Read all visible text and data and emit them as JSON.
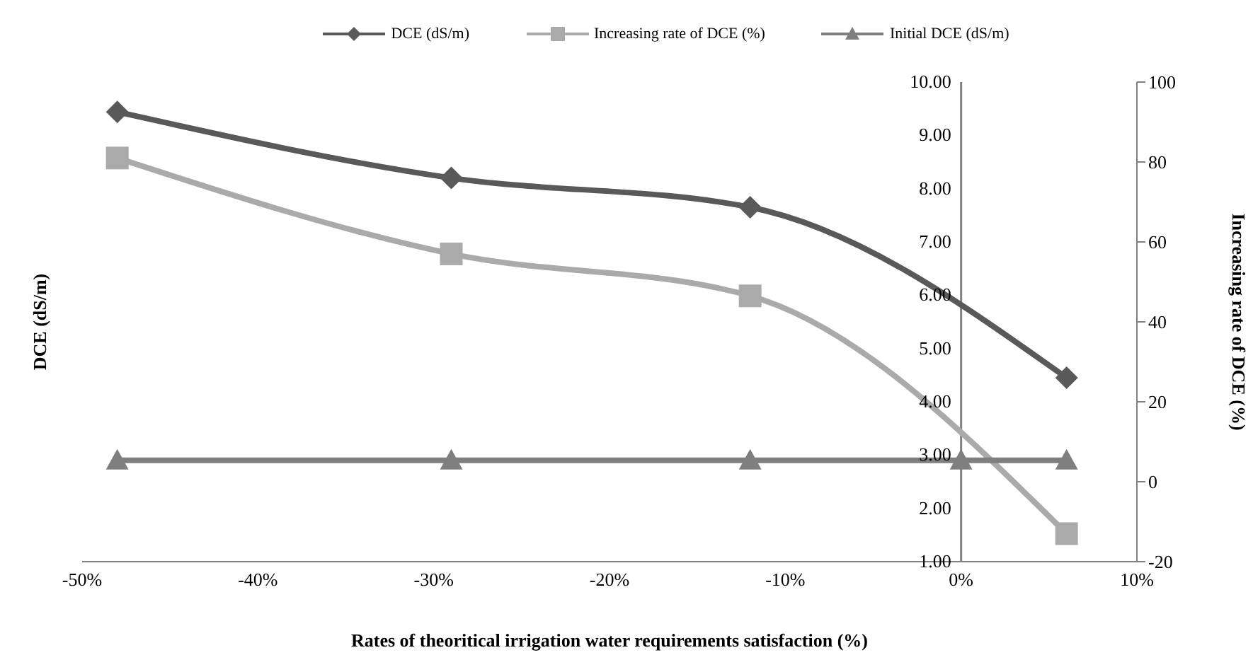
{
  "chart_data": {
    "type": "line",
    "xlabel": "Rates of theoritical irrigation water requirements satisfaction (%)",
    "ylabel": "DCE (dS/m)",
    "y2label": "Increasing rate of DCE (%)",
    "xlim": [
      -50,
      10
    ],
    "xticks": [
      {
        "value": -50,
        "label": "-50%"
      },
      {
        "value": -40,
        "label": "-40%"
      },
      {
        "value": -30,
        "label": "-30%"
      },
      {
        "value": -20,
        "label": "-20%"
      },
      {
        "value": -10,
        "label": "-10%"
      },
      {
        "value": 0,
        "label": "0%"
      },
      {
        "value": 10,
        "label": "10%"
      }
    ],
    "ylim": [
      1,
      10
    ],
    "yticks": [
      {
        "value": 1,
        "label": "1.00"
      },
      {
        "value": 2,
        "label": "2.00"
      },
      {
        "value": 3,
        "label": "3.00"
      },
      {
        "value": 4,
        "label": "4.00"
      },
      {
        "value": 5,
        "label": "5.00"
      },
      {
        "value": 6,
        "label": "6.00"
      },
      {
        "value": 7,
        "label": "7.00"
      },
      {
        "value": 8,
        "label": "8.00"
      },
      {
        "value": 9,
        "label": "9.00"
      },
      {
        "value": 10,
        "label": "10.00"
      }
    ],
    "y2lim": [
      -20,
      100
    ],
    "y2ticks": [
      -20,
      0,
      20,
      40,
      60,
      80,
      100
    ],
    "legend": "top",
    "line_style": "solid",
    "series": [
      {
        "name": "DCE (dS/m)",
        "color": "#595959",
        "marker": "diamond",
        "x": [
          -48,
          -29,
          -12,
          6
        ],
        "values": [
          9.44,
          8.2,
          7.65,
          4.45
        ]
      },
      {
        "name": "Increasing rate of DCE (%)",
        "color": "#aaaaaa",
        "marker": "square",
        "axis": "y2",
        "x": [
          -48,
          -29,
          -12,
          6
        ],
        "values": [
          81,
          57,
          46.5,
          -13
        ]
      },
      {
        "name": "Initial DCE (dS/m)",
        "color": "#7f7f7f",
        "marker": "triangle",
        "x": [
          -48,
          -29,
          -12,
          0,
          6
        ],
        "values": [
          2.9,
          2.9,
          2.9,
          2.9,
          2.9
        ]
      }
    ]
  }
}
